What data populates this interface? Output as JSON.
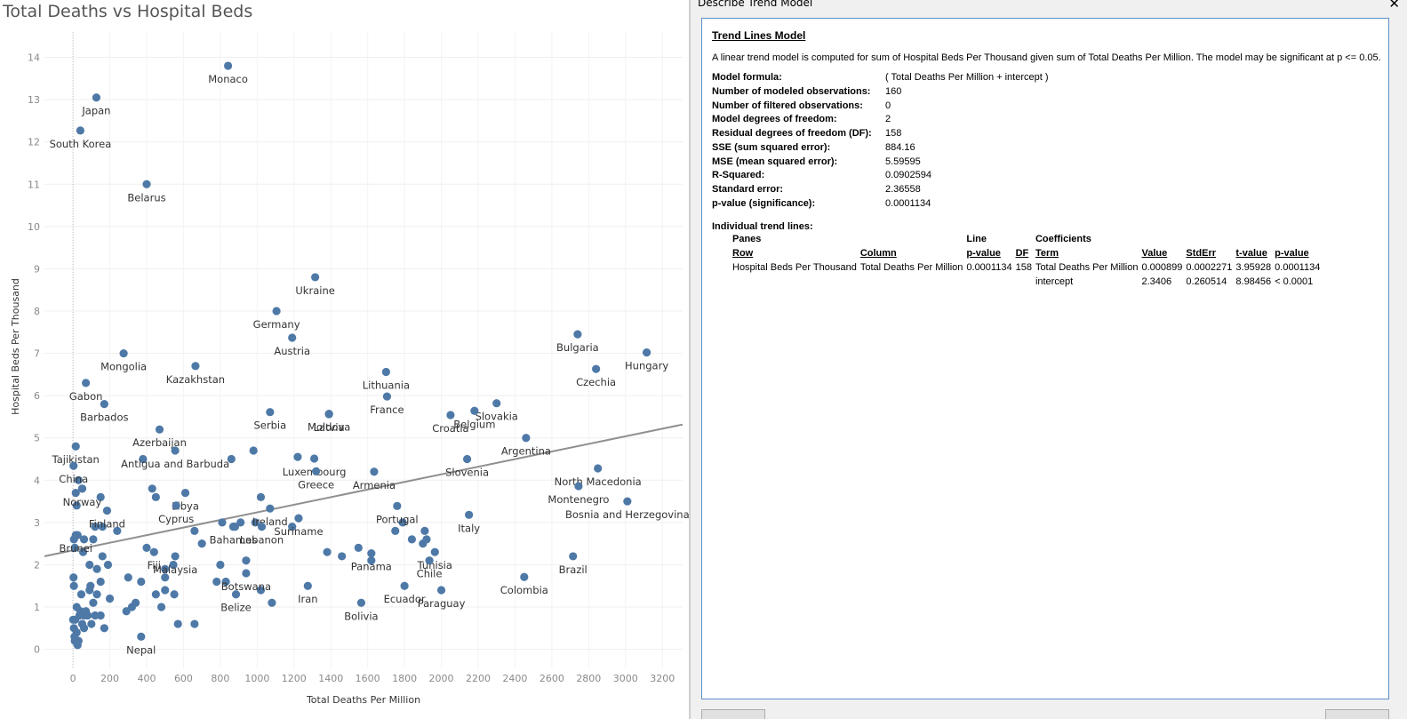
{
  "chart_data": {
    "type": "scatter",
    "title": "Total Deaths vs Hospital Beds",
    "xlabel": "Total Deaths Per Million",
    "ylabel": "Hospital Beds Per Thousand",
    "xlim": [
      -155,
      3310
    ],
    "ylim": [
      -0.45,
      14.6
    ],
    "xticks": [
      0,
      200,
      400,
      600,
      800,
      1000,
      1200,
      1400,
      1600,
      1800,
      2000,
      2200,
      2400,
      2600,
      2800,
      3000,
      3200
    ],
    "yticks": [
      0,
      1,
      2,
      3,
      4,
      5,
      6,
      7,
      8,
      9,
      10,
      11,
      12,
      13,
      14
    ],
    "grid": true,
    "trend_line": {
      "slope": 0.000899,
      "intercept": 2.3406
    },
    "point_color": "#4e79a7",
    "labeled_points": [
      {
        "name": "Monaco",
        "x": 842,
        "y": 13.8
      },
      {
        "name": "Japan",
        "x": 127,
        "y": 13.05
      },
      {
        "name": "South Korea",
        "x": 40,
        "y": 12.27
      },
      {
        "name": "Belarus",
        "x": 400,
        "y": 11.0
      },
      {
        "name": "Ukraine",
        "x": 1315,
        "y": 8.8
      },
      {
        "name": "Germany",
        "x": 1105,
        "y": 8.0
      },
      {
        "name": "Austria",
        "x": 1190,
        "y": 7.37
      },
      {
        "name": "Bulgaria",
        "x": 2740,
        "y": 7.45
      },
      {
        "name": "Hungary",
        "x": 3115,
        "y": 7.02
      },
      {
        "name": "Czechia",
        "x": 2840,
        "y": 6.63
      },
      {
        "name": "Mongolia",
        "x": 275,
        "y": 7.0
      },
      {
        "name": "Kazakhstan",
        "x": 665,
        "y": 6.7
      },
      {
        "name": "Gabon",
        "x": 70,
        "y": 6.3
      },
      {
        "name": "Lithuania",
        "x": 1700,
        "y": 6.56
      },
      {
        "name": "France",
        "x": 1705,
        "y": 5.98
      },
      {
        "name": "Slovakia",
        "x": 2300,
        "y": 5.82
      },
      {
        "name": "Barbados",
        "x": 170,
        "y": 5.8
      },
      {
        "name": "Moldova",
        "x": 1390,
        "y": 5.57
      },
      {
        "name": "Serbia",
        "x": 1070,
        "y": 5.61
      },
      {
        "name": "Latvia",
        "x": 1390,
        "y": 5.56
      },
      {
        "name": "Croatia",
        "x": 2050,
        "y": 5.54
      },
      {
        "name": "Belgium",
        "x": 2180,
        "y": 5.64
      },
      {
        "name": "Azerbaijan",
        "x": 470,
        "y": 5.2
      },
      {
        "name": "Tajikistan",
        "x": 15,
        "y": 4.8
      },
      {
        "name": "Argentina",
        "x": 2460,
        "y": 5.0
      },
      {
        "name": "Luxembourg",
        "x": 1310,
        "y": 4.51
      },
      {
        "name": "China",
        "x": 3,
        "y": 4.34
      },
      {
        "name": "Slovenia",
        "x": 2140,
        "y": 4.5
      },
      {
        "name": "North Macedonia",
        "x": 2850,
        "y": 4.28
      },
      {
        "name": "Antigua and Barbuda",
        "x": 555,
        "y": 4.7
      },
      {
        "name": "Norway",
        "x": 50,
        "y": 3.8
      },
      {
        "name": "Greece",
        "x": 1320,
        "y": 4.21
      },
      {
        "name": "Armenia",
        "x": 1635,
        "y": 4.2
      },
      {
        "name": "Montenegro",
        "x": 2745,
        "y": 3.86
      },
      {
        "name": "Libya",
        "x": 610,
        "y": 3.7
      },
      {
        "name": "Bosnia and Herzegovina",
        "x": 3010,
        "y": 3.5
      },
      {
        "name": "Portugal",
        "x": 1760,
        "y": 3.39
      },
      {
        "name": "Finland",
        "x": 185,
        "y": 3.28
      },
      {
        "name": "Ireland",
        "x": 1070,
        "y": 3.33
      },
      {
        "name": "Brunei",
        "x": 15,
        "y": 2.7
      },
      {
        "name": "Cyprus",
        "x": 560,
        "y": 3.4
      },
      {
        "name": "Suriname",
        "x": 1225,
        "y": 3.1
      },
      {
        "name": "Italy",
        "x": 2150,
        "y": 3.18
      },
      {
        "name": "Fiji",
        "x": 440,
        "y": 2.3
      },
      {
        "name": "Bahamas",
        "x": 870,
        "y": 2.9
      },
      {
        "name": "Lebanon",
        "x": 1025,
        "y": 2.9
      },
      {
        "name": "Tunisia",
        "x": 1965,
        "y": 2.3
      },
      {
        "name": "Malaysia",
        "x": 555,
        "y": 2.2
      },
      {
        "name": "Panama",
        "x": 1620,
        "y": 2.27
      },
      {
        "name": "Brazil",
        "x": 2715,
        "y": 2.2
      },
      {
        "name": "Botswana",
        "x": 940,
        "y": 1.8
      },
      {
        "name": "Chile",
        "x": 1935,
        "y": 2.1
      },
      {
        "name": "Colombia",
        "x": 2450,
        "y": 1.71
      },
      {
        "name": "Iran",
        "x": 1275,
        "y": 1.5
      },
      {
        "name": "Ecuador",
        "x": 1800,
        "y": 1.5
      },
      {
        "name": "Paraguay",
        "x": 2000,
        "y": 1.4
      },
      {
        "name": "Belize",
        "x": 885,
        "y": 1.3
      },
      {
        "name": "Bolivia",
        "x": 1565,
        "y": 1.1
      },
      {
        "name": "Nepal",
        "x": 370,
        "y": 0.3
      }
    ],
    "points": [
      [
        1,
        0.7
      ],
      [
        5,
        0.5
      ],
      [
        8,
        0.3
      ],
      [
        10,
        0.2
      ],
      [
        15,
        0.2
      ],
      [
        20,
        0.4
      ],
      [
        25,
        0.1
      ],
      [
        30,
        0.2
      ],
      [
        12,
        0.7
      ],
      [
        40,
        0.9
      ],
      [
        50,
        0.6
      ],
      [
        60,
        0.5
      ],
      [
        35,
        0.8
      ],
      [
        45,
        1.3
      ],
      [
        20,
        1.0
      ],
      [
        60,
        0.8
      ],
      [
        70,
        0.9
      ],
      [
        80,
        0.8
      ],
      [
        90,
        1.4
      ],
      [
        100,
        0.6
      ],
      [
        110,
        1.1
      ],
      [
        120,
        0.8
      ],
      [
        150,
        0.8
      ],
      [
        170,
        0.5
      ],
      [
        200,
        1.2
      ],
      [
        95,
        1.5
      ],
      [
        130,
        1.3
      ],
      [
        150,
        1.6
      ],
      [
        5,
        1.5
      ],
      [
        3,
        1.7
      ],
      [
        55,
        2.3
      ],
      [
        90,
        2.0
      ],
      [
        130,
        1.9
      ],
      [
        160,
        2.2
      ],
      [
        190,
        2.0
      ],
      [
        240,
        2.8
      ],
      [
        120,
        2.9
      ],
      [
        160,
        2.9
      ],
      [
        110,
        2.6
      ],
      [
        60,
        2.6
      ],
      [
        10,
        2.4
      ],
      [
        25,
        2.7
      ],
      [
        5,
        2.6
      ],
      [
        20,
        3.4
      ],
      [
        30,
        4.0
      ],
      [
        50,
        3.8
      ],
      [
        15,
        3.7
      ],
      [
        150,
        3.6
      ],
      [
        380,
        4.5
      ],
      [
        300,
        1.7
      ],
      [
        370,
        1.6
      ],
      [
        320,
        1.0
      ],
      [
        340,
        1.1
      ],
      [
        290,
        0.9
      ],
      [
        450,
        1.3
      ],
      [
        480,
        1.0
      ],
      [
        500,
        1.4
      ],
      [
        500,
        1.7
      ],
      [
        500,
        1.9
      ],
      [
        550,
        1.3
      ],
      [
        545,
        2.0
      ],
      [
        450,
        3.6
      ],
      [
        430,
        3.8
      ],
      [
        400,
        2.4
      ],
      [
        660,
        2.8
      ],
      [
        700,
        2.5
      ],
      [
        800,
        2.0
      ],
      [
        780,
        1.6
      ],
      [
        810,
        3.0
      ],
      [
        880,
        2.9
      ],
      [
        910,
        3.0
      ],
      [
        990,
        3.0
      ],
      [
        1020,
        3.6
      ],
      [
        940,
        2.1
      ],
      [
        1020,
        1.4
      ],
      [
        1080,
        1.1
      ],
      [
        1190,
        2.9
      ],
      [
        1380,
        2.3
      ],
      [
        1460,
        2.2
      ],
      [
        1550,
        2.4
      ],
      [
        1620,
        2.1
      ],
      [
        1750,
        2.8
      ],
      [
        1790,
        3.0
      ],
      [
        1840,
        2.6
      ],
      [
        1900,
        2.5
      ],
      [
        1910,
        2.8
      ],
      [
        1920,
        2.6
      ],
      [
        860,
        4.5
      ],
      [
        980,
        4.7
      ],
      [
        1220,
        4.55
      ],
      [
        660,
        0.6
      ],
      [
        830,
        1.6
      ],
      [
        570,
        0.6
      ]
    ]
  },
  "dialog": {
    "title": "Describe Trend Model",
    "close_glyph": "✕",
    "heading": "Trend Lines Model",
    "description": "A linear trend model is computed for sum of Hospital Beds Per Thousand given sum of Total Deaths Per Million.  The model may be significant at p <= 0.05.",
    "stats": [
      {
        "label": "Model formula:",
        "value": "( Total Deaths Per Million + intercept )"
      },
      {
        "label": "Number of modeled observations:",
        "value": "160"
      },
      {
        "label": "Number of filtered observations:",
        "value": "0"
      },
      {
        "label": "Model degrees of freedom:",
        "value": "2"
      },
      {
        "label": "Residual degrees of freedom (DF):",
        "value": "158"
      },
      {
        "label": "SSE (sum squared error):",
        "value": "884.16"
      },
      {
        "label": "MSE (mean squared error):",
        "value": "5.59595"
      },
      {
        "label": "R-Squared:",
        "value": "0.0902594"
      },
      {
        "label": "Standard error:",
        "value": "2.36558"
      },
      {
        "label": "p-value (significance):",
        "value": "0.0001134"
      }
    ],
    "individual_heading": "Individual trend lines:",
    "table_header1": [
      "Panes",
      "",
      "Line",
      "",
      "Coefficients",
      "",
      "",
      "",
      ""
    ],
    "table_header2": [
      "Row",
      "Column",
      "p-value",
      "DF",
      "Term",
      "Value",
      "StdErr",
      "t-value",
      "p-value"
    ],
    "table_rows": [
      [
        "Hospital Beds Per Thousand",
        "Total Deaths Per Million",
        "0.0001134",
        "158",
        "Total Deaths Per Million",
        "0.000899",
        "0.0002271",
        "3.95928",
        "0.0001134"
      ],
      [
        "",
        "",
        "",
        "",
        "intercept",
        "2.3406",
        "0.260514",
        "8.98456",
        "< 0.0001"
      ]
    ]
  }
}
